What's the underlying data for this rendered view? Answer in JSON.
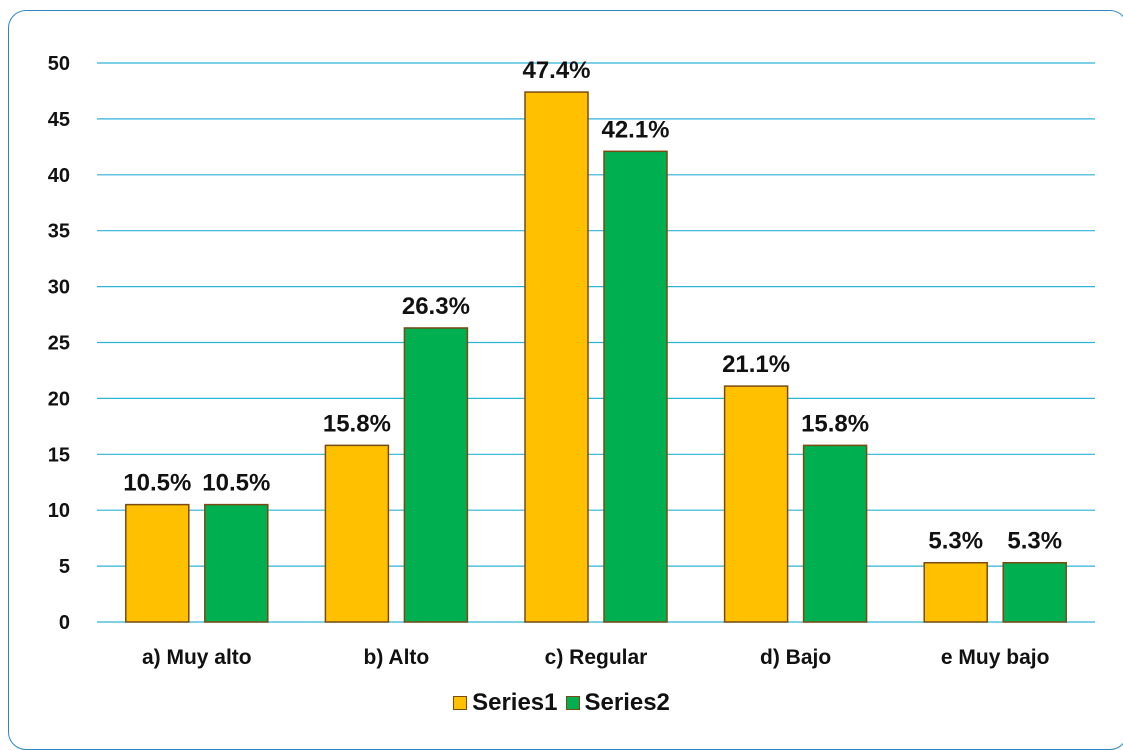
{
  "chart_data": {
    "type": "bar",
    "categories": [
      "a) Muy alto",
      "b) Alto",
      "c) Regular",
      "d) Bajo",
      "e Muy bajo"
    ],
    "series": [
      {
        "name": "Series1",
        "values": [
          10.5,
          15.8,
          47.4,
          21.1,
          5.3
        ],
        "labels": [
          "10.5%",
          "15.8%",
          "47.4%",
          "21.1%",
          "5.3%"
        ],
        "color": "#FFC000"
      },
      {
        "name": "Series2",
        "values": [
          10.5,
          26.3,
          42.1,
          15.8,
          5.3
        ],
        "labels": [
          "10.5%",
          "26.3%",
          "42.1%",
          "15.8%",
          "5.3%"
        ],
        "color": "#00B050"
      }
    ],
    "ylim": [
      0,
      50
    ],
    "yticks": [
      "0",
      "5",
      "10",
      "15",
      "20",
      "25",
      "30",
      "35",
      "40",
      "45",
      "50"
    ],
    "grid": true,
    "legend": "bottom",
    "colors": {
      "gridline": "#2EB3D9",
      "bar_border": "#7A4A12",
      "frame": "#2E86C1"
    }
  }
}
